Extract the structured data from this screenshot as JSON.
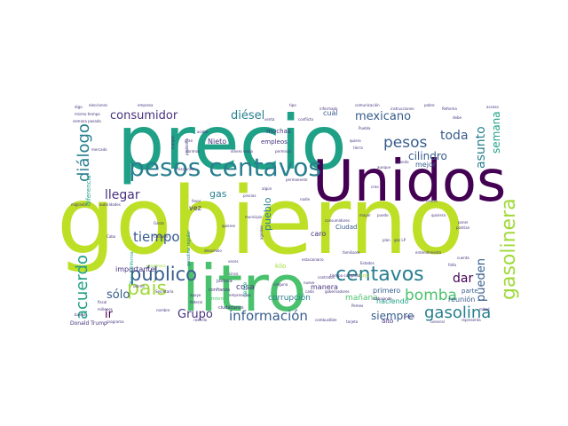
{
  "palette": {
    "dark_purple": "#440154",
    "indigo": "#46327e",
    "blue": "#365c8d",
    "teal_blue": "#277f8e",
    "teal": "#1fa187",
    "green": "#4ac16d",
    "lime": "#a0da39",
    "yellow": "#fde725"
  },
  "words": [
    {
      "text": "gobierno",
      "color": "#bddf26",
      "weight": 1.0
    },
    {
      "text": "precio",
      "color": "#1fa187",
      "weight": 0.72
    },
    {
      "text": "Unidos",
      "color": "#440154",
      "weight": 0.62
    },
    {
      "text": "litro",
      "color": "#4ac16d",
      "weight": 0.6
    },
    {
      "text": "pesos centavos",
      "color": "#277f8e",
      "weight": 0.3
    },
    {
      "text": "centavos",
      "color": "#277f8e",
      "weight": 0.22
    },
    {
      "text": "gasolinera",
      "color": "#a0da39",
      "weight": 0.22
    },
    {
      "text": "país",
      "color": "#a0da39",
      "weight": 0.22
    },
    {
      "text": "público",
      "color": "#365c8d",
      "weight": 0.21
    },
    {
      "text": "gasolina",
      "color": "#277f8e",
      "weight": 0.18
    },
    {
      "text": "bomba",
      "color": "#4ac16d",
      "weight": 0.17
    },
    {
      "text": "pesos",
      "color": "#365c8d",
      "weight": 0.17
    },
    {
      "text": "acuerdo",
      "color": "#1fa187",
      "weight": 0.17
    },
    {
      "text": "diálogo",
      "color": "#277f8e",
      "weight": 0.17
    },
    {
      "text": "información",
      "color": "#365c8d",
      "weight": 0.15
    },
    {
      "text": "tiempo",
      "color": "#365c8d",
      "weight": 0.15
    },
    {
      "text": "llegar",
      "color": "#46327e",
      "weight": 0.14
    },
    {
      "text": "Grupo",
      "color": "#46327e",
      "weight": 0.13
    },
    {
      "text": "mexicano",
      "color": "#365c8d",
      "weight": 0.13
    },
    {
      "text": "consumidor",
      "color": "#46327e",
      "weight": 0.13
    },
    {
      "text": "asunto",
      "color": "#277f8e",
      "weight": 0.14
    },
    {
      "text": "toda",
      "color": "#365c8d",
      "weight": 0.14
    },
    {
      "text": "pueden",
      "color": "#365c8d",
      "weight": 0.13
    },
    {
      "text": "diésel",
      "color": "#277f8e",
      "weight": 0.13
    },
    {
      "text": "cilindro",
      "color": "#365c8d",
      "weight": 0.12
    },
    {
      "text": "siempre",
      "color": "#365c8d",
      "weight": 0.12
    },
    {
      "text": "dar",
      "color": "#440154",
      "weight": 0.14
    },
    {
      "text": "semana",
      "color": "#1fa187",
      "weight": 0.12
    },
    {
      "text": "sólo",
      "color": "#365c8d",
      "weight": 0.13
    },
    {
      "text": "ir",
      "color": "#440154",
      "weight": 0.13
    },
    {
      "text": "pueblo",
      "color": "#277f8e",
      "weight": 0.11
    },
    {
      "text": "gas",
      "color": "#277f8e",
      "weight": 0.11
    },
    {
      "text": "mañana",
      "color": "#4ac16d",
      "weight": 0.09
    },
    {
      "text": "corrupción",
      "color": "#277f8e",
      "weight": 0.09
    },
    {
      "text": "cosa",
      "color": "#46327e",
      "weight": 0.09
    },
    {
      "text": "manera",
      "color": "#46327e",
      "weight": 0.08
    },
    {
      "text": "primero",
      "color": "#365c8d",
      "weight": 0.08
    },
    {
      "text": "reunión",
      "color": "#365c8d",
      "weight": 0.08
    },
    {
      "text": "haciendo",
      "color": "#1fa187",
      "weight": 0.08
    },
    {
      "text": "importante",
      "color": "#46327e",
      "weight": 0.08
    },
    {
      "text": "Nieto",
      "color": "#46327e",
      "weight": 0.08
    },
    {
      "text": "muchas",
      "color": "#46327e",
      "weight": 0.07
    },
    {
      "text": "empleos",
      "color": "#46327e",
      "weight": 0.07
    },
    {
      "text": "mejor",
      "color": "#365c8d",
      "weight": 0.08
    },
    {
      "text": "cuál",
      "color": "#365c8d",
      "weight": 0.08
    },
    {
      "text": "vez",
      "color": "#46327e",
      "weight": 0.08
    },
    {
      "text": "caro",
      "color": "#46327e",
      "weight": 0.08
    },
    {
      "text": "Ciudad",
      "color": "#365c8d",
      "weight": 0.07
    },
    {
      "text": "diferencia",
      "color": "#1fa187",
      "weight": 0.07
    },
    {
      "text": "alto",
      "color": "#46327e",
      "weight": 0.07
    },
    {
      "text": "parte",
      "color": "#365c8d",
      "weight": 0.07
    },
    {
      "text": "kilo",
      "color": "#a0da39",
      "weight": 0.07
    },
    {
      "text": "gente",
      "color": "#1fa187",
      "weight": 0.06
    },
    {
      "text": "Donald Trump",
      "color": "#46327e",
      "weight": 0.06
    },
    {
      "text": "Baja California",
      "color": "#1fa187",
      "weight": 0.05
    },
    {
      "text": "gasolina regular",
      "color": "#277f8e",
      "weight": 0.05
    },
    {
      "text": "ciudadanos",
      "color": "#46327e",
      "weight": 0.05
    },
    {
      "text": "justicia",
      "color": "#46327e",
      "weight": 0.05
    },
    {
      "text": "confianza",
      "color": "#46327e",
      "weight": 0.05
    },
    {
      "text": "elecciones",
      "color": "#46327e",
      "weight": 0.04
    },
    {
      "text": "empresa",
      "color": "#46327e",
      "weight": 0.04
    },
    {
      "text": "comunicación",
      "color": "#46327e",
      "weight": 0.04
    },
    {
      "text": "margen",
      "color": "#46327e",
      "weight": 0.04
    },
    {
      "text": "mismo",
      "color": "#4ac16d",
      "weight": 0.05
    },
    {
      "text": "hoyo",
      "color": "#a0da39",
      "weight": 0.05
    },
    {
      "text": "Cabo",
      "color": "#46327e",
      "weight": 0.04
    },
    {
      "text": "nombre",
      "color": "#46327e",
      "weight": 0.04
    },
    {
      "text": "buena",
      "color": "#46327e",
      "weight": 0.04
    },
    {
      "text": "programa",
      "color": "#46327e",
      "weight": 0.04
    },
    {
      "text": "dinero",
      "color": "#46327e",
      "weight": 0.04
    },
    {
      "text": "problema",
      "color": "#46327e",
      "weight": 0.04
    },
    {
      "text": "favor",
      "color": "#46327e",
      "weight": 0.04
    },
    {
      "text": "combustible",
      "color": "#46327e",
      "weight": 0.04
    },
    {
      "text": "representa",
      "color": "#46327e",
      "weight": 0.04
    },
    {
      "text": "veces",
      "color": "#46327e",
      "weight": 0.04
    },
    {
      "text": "económica",
      "color": "#a0da39",
      "weight": 0.04
    },
    {
      "text": "trabajando",
      "color": "#46327e",
      "weight": 0.04
    },
    {
      "text": "plan",
      "color": "#46327e",
      "weight": 0.04
    },
    {
      "text": "dando",
      "color": "#46327e",
      "weight": 0.04
    },
    {
      "text": "aunque",
      "color": "#46327e",
      "weight": 0.03
    },
    {
      "text": "tierra",
      "color": "#46327e",
      "weight": 0.03
    },
    {
      "text": "gran",
      "color": "#46327e",
      "weight": 0.03
    },
    {
      "text": "relaciones",
      "color": "#46327e",
      "weight": 0.03
    },
    {
      "text": "desarrollo",
      "color": "#46327e",
      "weight": 0.03
    },
    {
      "text": "permisos",
      "color": "#46327e",
      "weight": 0.03
    },
    {
      "text": "nuevo",
      "color": "#46327e",
      "weight": 0.03
    },
    {
      "text": "cada",
      "color": "#46327e",
      "weight": 0.03
    },
    {
      "text": "rastrillo",
      "color": "#46327e",
      "weight": 0.03
    },
    {
      "text": "fiscal",
      "color": "#46327e",
      "weight": 0.03
    },
    {
      "text": "millones",
      "color": "#46327e",
      "weight": 0.03
    },
    {
      "text": "Chicago",
      "color": "#46327e",
      "weight": 0.03
    },
    {
      "text": "Garza",
      "color": "#46327e",
      "weight": 0.03
    },
    {
      "text": "seguir",
      "color": "#46327e",
      "weight": 0.03
    },
    {
      "text": "General",
      "color": "#46327e",
      "weight": 0.03
    },
    {
      "text": "Pemex",
      "color": "#46327e",
      "weight": 0.03
    },
    {
      "text": "Reforma",
      "color": "#46327e",
      "weight": 0.03
    },
    {
      "text": "informado",
      "color": "#46327e",
      "weight": 0.03
    },
    {
      "text": "conflicto",
      "color": "#46327e",
      "weight": 0.03
    },
    {
      "text": "mercado",
      "color": "#46327e",
      "weight": 0.03
    },
    {
      "text": "semana pasada",
      "color": "#46327e",
      "weight": 0.03
    },
    {
      "text": "mismo tiempo",
      "color": "#46327e",
      "weight": 0.03
    },
    {
      "text": "digo",
      "color": "#46327e",
      "weight": 0.03
    },
    {
      "text": "quiero",
      "color": "#46327e",
      "weight": 0.03
    },
    {
      "text": "enojo",
      "color": "#46327e",
      "weight": 0.03
    },
    {
      "text": "abrimos",
      "color": "#46327e",
      "weight": 0.03
    },
    {
      "text": "Secretaría",
      "color": "#46327e",
      "weight": 0.03
    },
    {
      "text": "última",
      "color": "#46327e",
      "weight": 0.03
    },
    {
      "text": "apoyo",
      "color": "#46327e",
      "weight": 0.03
    },
    {
      "text": "federal",
      "color": "#46327e",
      "weight": 0.03
    },
    {
      "text": "empresarios",
      "color": "#46327e",
      "weight": 0.03
    },
    {
      "text": "ninguna",
      "color": "#46327e",
      "weight": 0.03
    },
    {
      "text": "contratos",
      "color": "#46327e",
      "weight": 0.03
    },
    {
      "text": "estacionario",
      "color": "#46327e",
      "weight": 0.03
    },
    {
      "text": "familiares",
      "color": "#46327e",
      "weight": 0.03
    },
    {
      "text": "entendimiento",
      "color": "#46327e",
      "weight": 0.03
    },
    {
      "text": "mayor",
      "color": "#46327e",
      "weight": 0.03
    },
    {
      "text": "puedo",
      "color": "#46327e",
      "weight": 0.03
    },
    {
      "text": "quisiera",
      "color": "#46327e",
      "weight": 0.03
    },
    {
      "text": "municipio",
      "color": "#46327e",
      "weight": 0.03
    },
    {
      "text": "quieren",
      "color": "#46327e",
      "weight": 0.03
    },
    {
      "text": "tarjeta",
      "color": "#46327e",
      "weight": 0.03
    },
    {
      "text": "Puebla",
      "color": "#46327e",
      "weight": 0.03
    },
    {
      "text": "instrucciones",
      "color": "#46327e",
      "weight": 0.03
    },
    {
      "text": "Estados",
      "color": "#46327e",
      "weight": 0.03
    },
    {
      "text": "consumidores",
      "color": "#46327e",
      "weight": 0.03
    },
    {
      "text": "gobernadores",
      "color": "#46327e",
      "weight": 0.03
    },
    {
      "text": "autoridades",
      "color": "#46327e",
      "weight": 0.03
    },
    {
      "text": "mitad",
      "color": "#46327e",
      "weight": 0.03
    },
    {
      "text": "migrante",
      "color": "#46327e",
      "weight": 0.03
    },
    {
      "text": "cinco",
      "color": "#46327e",
      "weight": 0.03
    },
    {
      "text": "acabó",
      "color": "#46327e",
      "weight": 0.03
    },
    {
      "text": "poner",
      "color": "#46327e",
      "weight": 0.03
    },
    {
      "text": "podrían",
      "color": "#46327e",
      "weight": 0.03
    },
    {
      "text": "centro",
      "color": "#46327e",
      "weight": 0.03
    },
    {
      "text": "cuenta",
      "color": "#46327e",
      "weight": 0.03
    },
    {
      "text": "falta",
      "color": "#46327e",
      "weight": 0.03
    },
    {
      "text": "debe",
      "color": "#46327e",
      "weight": 0.03
    },
    {
      "text": "tipo",
      "color": "#46327e",
      "weight": 0.03
    },
    {
      "text": "venta",
      "color": "#46327e",
      "weight": 0.03
    },
    {
      "text": "agentes",
      "color": "#46327e",
      "weight": 0.03
    },
    {
      "text": "algún",
      "color": "#46327e",
      "weight": 0.03
    },
    {
      "text": "nadie",
      "color": "#46327e",
      "weight": 0.03
    },
    {
      "text": "creo",
      "color": "#46327e",
      "weight": 0.03
    },
    {
      "text": "permanente",
      "color": "#46327e",
      "weight": 0.03
    },
    {
      "text": "precios",
      "color": "#46327e",
      "weight": 0.03
    },
    {
      "text": "acceso",
      "color": "#46327e",
      "weight": 0.03
    },
    {
      "text": "pobre",
      "color": "#46327e",
      "weight": 0.03
    },
    {
      "text": "tiempo completo",
      "color": "#46327e",
      "weight": 0.03
    },
    {
      "text": "gas LP",
      "color": "#46327e",
      "weight": 0.03
    }
  ]
}
